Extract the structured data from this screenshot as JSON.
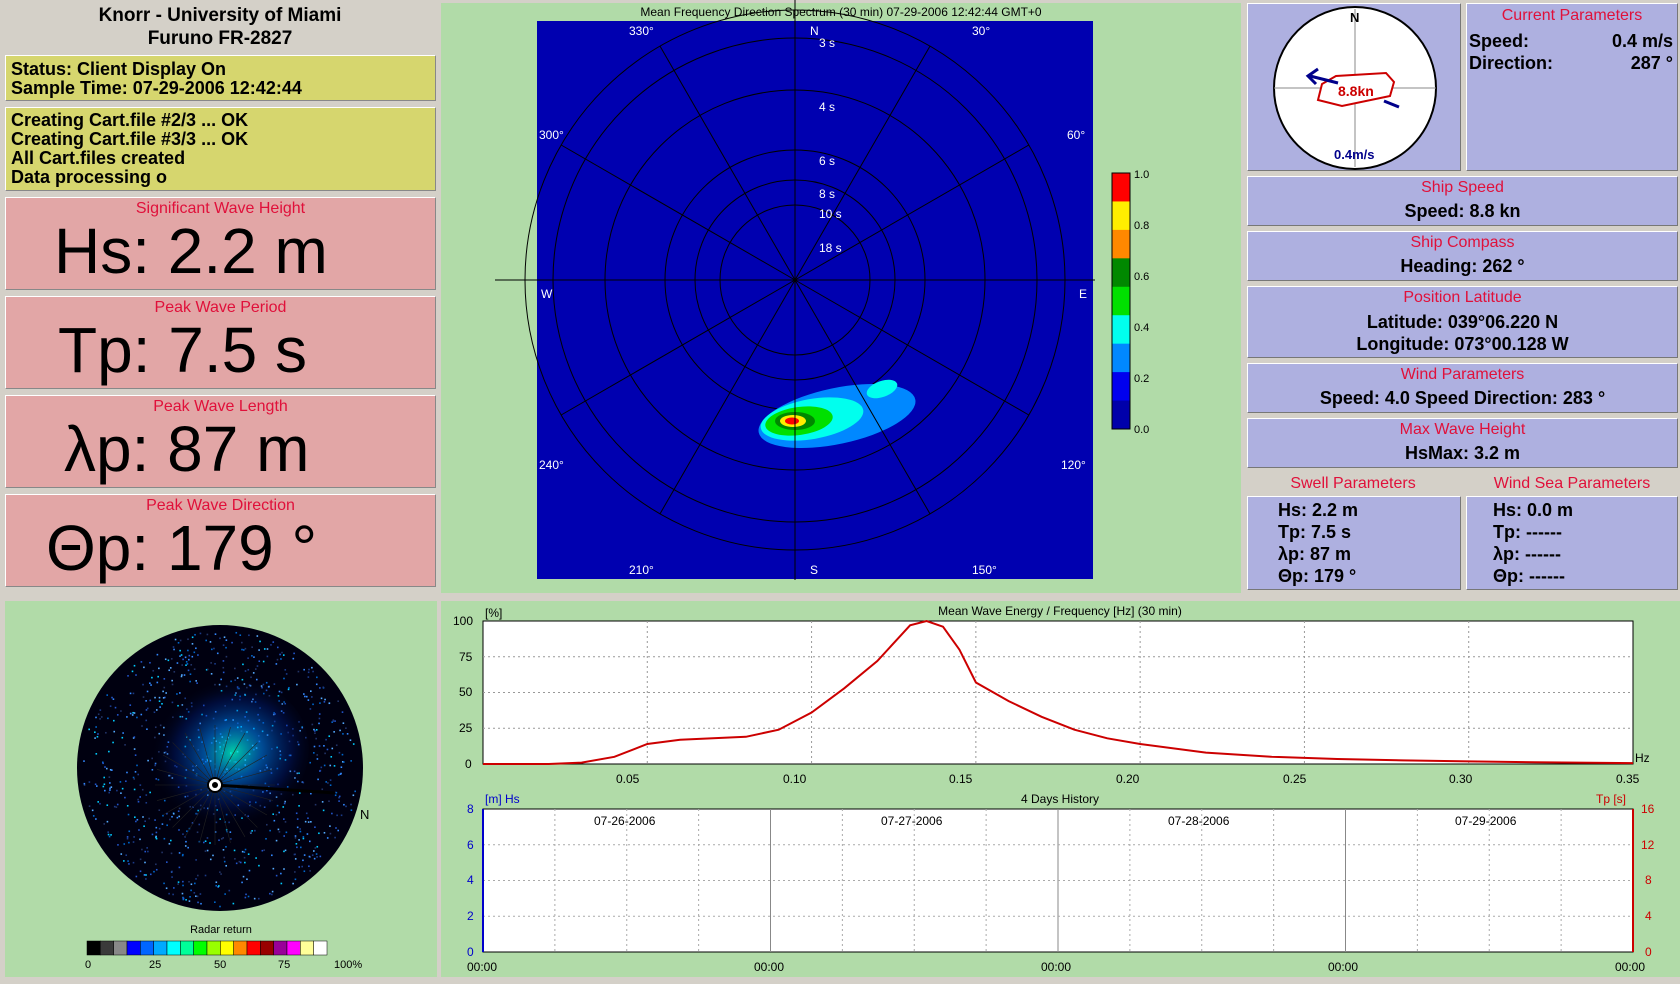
{
  "header": {
    "line1": "Knorr - University of Miami",
    "line2": "Furuno FR-2827"
  },
  "status": {
    "line1": "Status: Client Display On",
    "line2": "Sample Time: 07-29-2006 12:42:44"
  },
  "log": [
    "Creating Cart.file #2/3 ... OK",
    "Creating Cart.file #3/3 ... OK",
    "All Cart.files created",
    "Data processing o"
  ],
  "wave_cards": [
    {
      "title": "Significant Wave Height",
      "value": "Hs: 2.2 m"
    },
    {
      "title": "Peak Wave Period",
      "value": "Tp: 7.5 s"
    },
    {
      "title": "Peak Wave Length",
      "value": "λp: 87 m"
    },
    {
      "title": "Peak Wave Direction",
      "value": "Θp: 179 °"
    }
  ],
  "spectrum": {
    "title": "Mean Frequency Direction Spectrum (30 min) 07-29-2006 12:42:44 GMT+0",
    "compass": {
      "n": "N",
      "s": "S",
      "e": "E",
      "w": "W"
    },
    "angles": [
      "30°",
      "60°",
      "120°",
      "150°",
      "210°",
      "240°",
      "300°",
      "330°"
    ],
    "periods": [
      "3 s",
      "4 s",
      "6 s",
      "8 s",
      "10 s",
      "18 s"
    ],
    "colorbar": [
      "1.0",
      "0.8",
      "0.6",
      "0.4",
      "0.2",
      "0.0"
    ],
    "colors": [
      "#ff0000",
      "#ffee00",
      "#ff8800",
      "#008800",
      "#00e000",
      "#00ffee",
      "#0088ff",
      "#0000ee",
      "#0000aa"
    ]
  },
  "compass_widget": {
    "north": "N",
    "ship_speed": "8.8kn",
    "current": "0.4m/s"
  },
  "current": {
    "title": "Current Parameters",
    "speed_label": "Speed:",
    "speed_value": "0.4 m/s",
    "dir_label": "Direction:",
    "dir_value": "287 °"
  },
  "ship_speed": {
    "title": "Ship Speed",
    "text": "Speed: 8.8 kn"
  },
  "ship_compass": {
    "title": "Ship Compass",
    "text": "Heading: 262 °"
  },
  "position": {
    "title": "Position Latitude",
    "lat": "Latitude: 039°06.220 N",
    "lon": "Longitude: 073°00.128 W"
  },
  "wind": {
    "title": "Wind Parameters",
    "text": "Speed: 4.0 Speed  Direction: 283 °"
  },
  "max_wave": {
    "title": "Max Wave Height",
    "text": "HsMax: 3.2 m"
  },
  "swell": {
    "title": "Swell Parameters",
    "lines": [
      "Hs: 2.2 m",
      "Tp: 7.5 s",
      "λp: 87 m",
      "Θp: 179 °"
    ]
  },
  "wind_sea": {
    "title": "Wind Sea Parameters",
    "lines": [
      "Hs: 0.0 m",
      "Tp: ------",
      "λp: ------",
      "Θp: ------"
    ]
  },
  "radar": {
    "north": "N",
    "legend_title": "Radar return",
    "legend_ticks": [
      "0",
      "25",
      "50",
      "75",
      "100%"
    ],
    "legend_colors": [
      "#000000",
      "#3a3a3a",
      "#888888",
      "#0000ff",
      "#0066ff",
      "#00aaff",
      "#00ffff",
      "#00ff99",
      "#00ff00",
      "#99ff00",
      "#ffff00",
      "#ff8800",
      "#ff0000",
      "#990000",
      "#990099",
      "#ff00ff",
      "#ffff99",
      "#ffffff"
    ]
  },
  "energy_chart": {
    "title": "Mean Wave Energy / Frequency [Hz] (30 min)",
    "ylabel": "[%]",
    "xunit": "Hz",
    "x_ticks": [
      "0.05",
      "0.10",
      "0.15",
      "0.20",
      "0.25",
      "0.30",
      "0.35"
    ],
    "y_ticks": [
      "100",
      "75",
      "50",
      "25",
      "0"
    ]
  },
  "history_chart": {
    "title": "4 Days History",
    "left_label": "[m] Hs",
    "right_label": "Tp [s]",
    "left_ticks": [
      "8",
      "6",
      "4",
      "2",
      "0"
    ],
    "right_ticks": [
      "16",
      "12",
      "8",
      "4",
      "0"
    ],
    "dates": [
      "07-26-2006",
      "07-27-2006",
      "07-28-2006",
      "07-29-2006"
    ],
    "x_ticks": [
      "00:00",
      "00:00",
      "00:00",
      "00:00",
      "00:00"
    ]
  },
  "chart_data": {
    "type": "line",
    "title": "Mean Wave Energy / Frequency [Hz] (30 min)",
    "xlabel": "Hz",
    "ylabel": "[%]",
    "xlim": [
      0,
      0.35
    ],
    "ylim": [
      0,
      100
    ],
    "x": [
      0,
      0.02,
      0.03,
      0.04,
      0.05,
      0.06,
      0.07,
      0.08,
      0.09,
      0.1,
      0.11,
      0.12,
      0.13,
      0.135,
      0.14,
      0.145,
      0.15,
      0.16,
      0.17,
      0.18,
      0.19,
      0.2,
      0.22,
      0.24,
      0.26,
      0.28,
      0.3,
      0.32,
      0.35
    ],
    "values": [
      0,
      0,
      1,
      5,
      14,
      17,
      18,
      19,
      24,
      36,
      53,
      72,
      97,
      100,
      96,
      80,
      57,
      44,
      33,
      24,
      18,
      14,
      8,
      5,
      3.5,
      2.5,
      1.8,
      1.2,
      0.6
    ],
    "grid": true
  }
}
